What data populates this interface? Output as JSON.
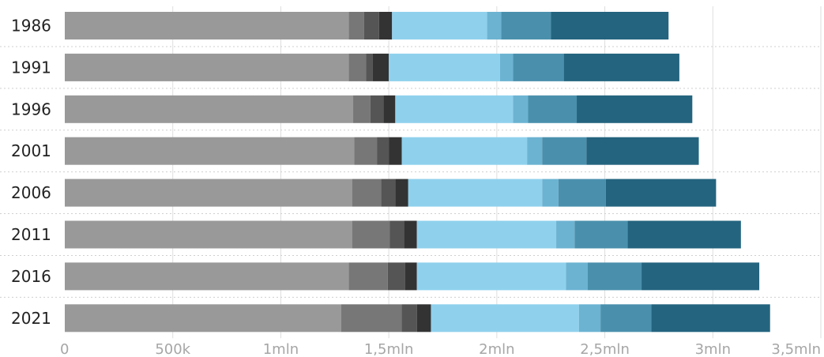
{
  "chart_data": {
    "type": "bar",
    "orientation": "horizontal",
    "stacked": true,
    "title": "",
    "xlabel": "",
    "ylabel": "",
    "categories": [
      "1986",
      "1991",
      "1996",
      "2001",
      "2006",
      "2011",
      "2016",
      "2021"
    ],
    "xlim": [
      0,
      3500000
    ],
    "x_ticks": [
      0,
      500000,
      1000000,
      1500000,
      2000000,
      2500000,
      3000000,
      3500000
    ],
    "x_tick_labels": [
      "0",
      "500k",
      "1mln",
      "1,5mln",
      "2mln",
      "2,5mln",
      "3mln",
      "3,5mln"
    ],
    "grid": true,
    "legend": "none",
    "series": [
      {
        "color": "#999999",
        "values": [
          1315000,
          1315000,
          1335000,
          1340000,
          1330000,
          1330000,
          1315000,
          1280000
        ]
      },
      {
        "color": "#777777",
        "values": [
          70000,
          80000,
          80000,
          105000,
          135000,
          175000,
          180000,
          280000
        ]
      },
      {
        "color": "#555555",
        "values": [
          70000,
          30000,
          60000,
          55000,
          65000,
          65000,
          80000,
          70000
        ]
      },
      {
        "color": "#333333",
        "values": [
          60000,
          75000,
          55000,
          60000,
          60000,
          60000,
          55000,
          65000
        ]
      },
      {
        "color": "#8fd1ed",
        "values": [
          440000,
          515000,
          545000,
          580000,
          620000,
          645000,
          690000,
          685000
        ]
      },
      {
        "color": "#6cb3d2",
        "values": [
          65000,
          60000,
          70000,
          70000,
          75000,
          85000,
          100000,
          100000
        ]
      },
      {
        "color": "#4a90ad",
        "values": [
          230000,
          235000,
          225000,
          205000,
          220000,
          245000,
          250000,
          235000
        ]
      },
      {
        "color": "#24647f",
        "values": [
          545000,
          535000,
          535000,
          520000,
          510000,
          525000,
          545000,
          550000
        ]
      }
    ]
  }
}
